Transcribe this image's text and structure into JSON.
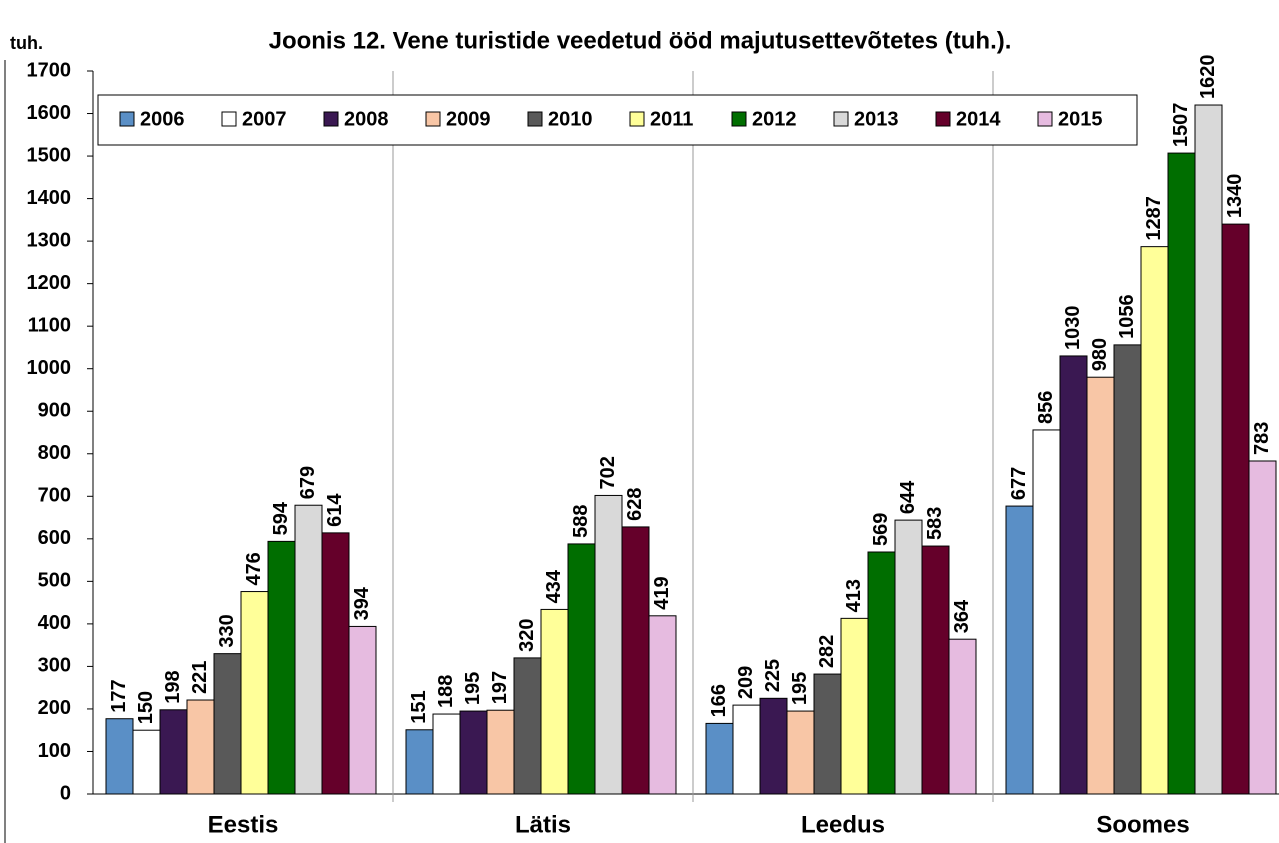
{
  "chart_data": {
    "type": "bar",
    "title": "Joonis 12. Vene turistide veedetud ööd majutusettevõtetes (tuh.).",
    "y_label": "tuh.",
    "categories": [
      "Eestis",
      "Lätis",
      "Leedus",
      "Soomes"
    ],
    "series": [
      {
        "name": "2006",
        "color": "#5a8fc6",
        "values": [
          177,
          151,
          166,
          677
        ]
      },
      {
        "name": "2007",
        "color": "#ffffff",
        "values": [
          150,
          188,
          209,
          856
        ]
      },
      {
        "name": "2008",
        "color": "#3a1852",
        "values": [
          198,
          195,
          225,
          1030
        ]
      },
      {
        "name": "2009",
        "color": "#f8c6a6",
        "values": [
          221,
          197,
          195,
          980
        ]
      },
      {
        "name": "2010",
        "color": "#595959",
        "values": [
          330,
          320,
          282,
          1056
        ]
      },
      {
        "name": "2011",
        "color": "#ffff99",
        "values": [
          476,
          434,
          413,
          1287
        ]
      },
      {
        "name": "2012",
        "color": "#006e00",
        "values": [
          594,
          588,
          569,
          1507
        ]
      },
      {
        "name": "2013",
        "color": "#d9d9d9",
        "values": [
          679,
          702,
          644,
          1620
        ]
      },
      {
        "name": "2014",
        "color": "#65002a",
        "values": [
          614,
          628,
          583,
          1340
        ]
      },
      {
        "name": "2015",
        "color": "#e6bbe0",
        "values": [
          394,
          419,
          364,
          783
        ]
      }
    ],
    "ylim": [
      0,
      1700
    ],
    "yticks": [
      0,
      100,
      200,
      300,
      400,
      500,
      600,
      700,
      800,
      900,
      1000,
      1100,
      1200,
      1300,
      1400,
      1500,
      1600,
      1700
    ],
    "legend": "top",
    "grid": false
  }
}
